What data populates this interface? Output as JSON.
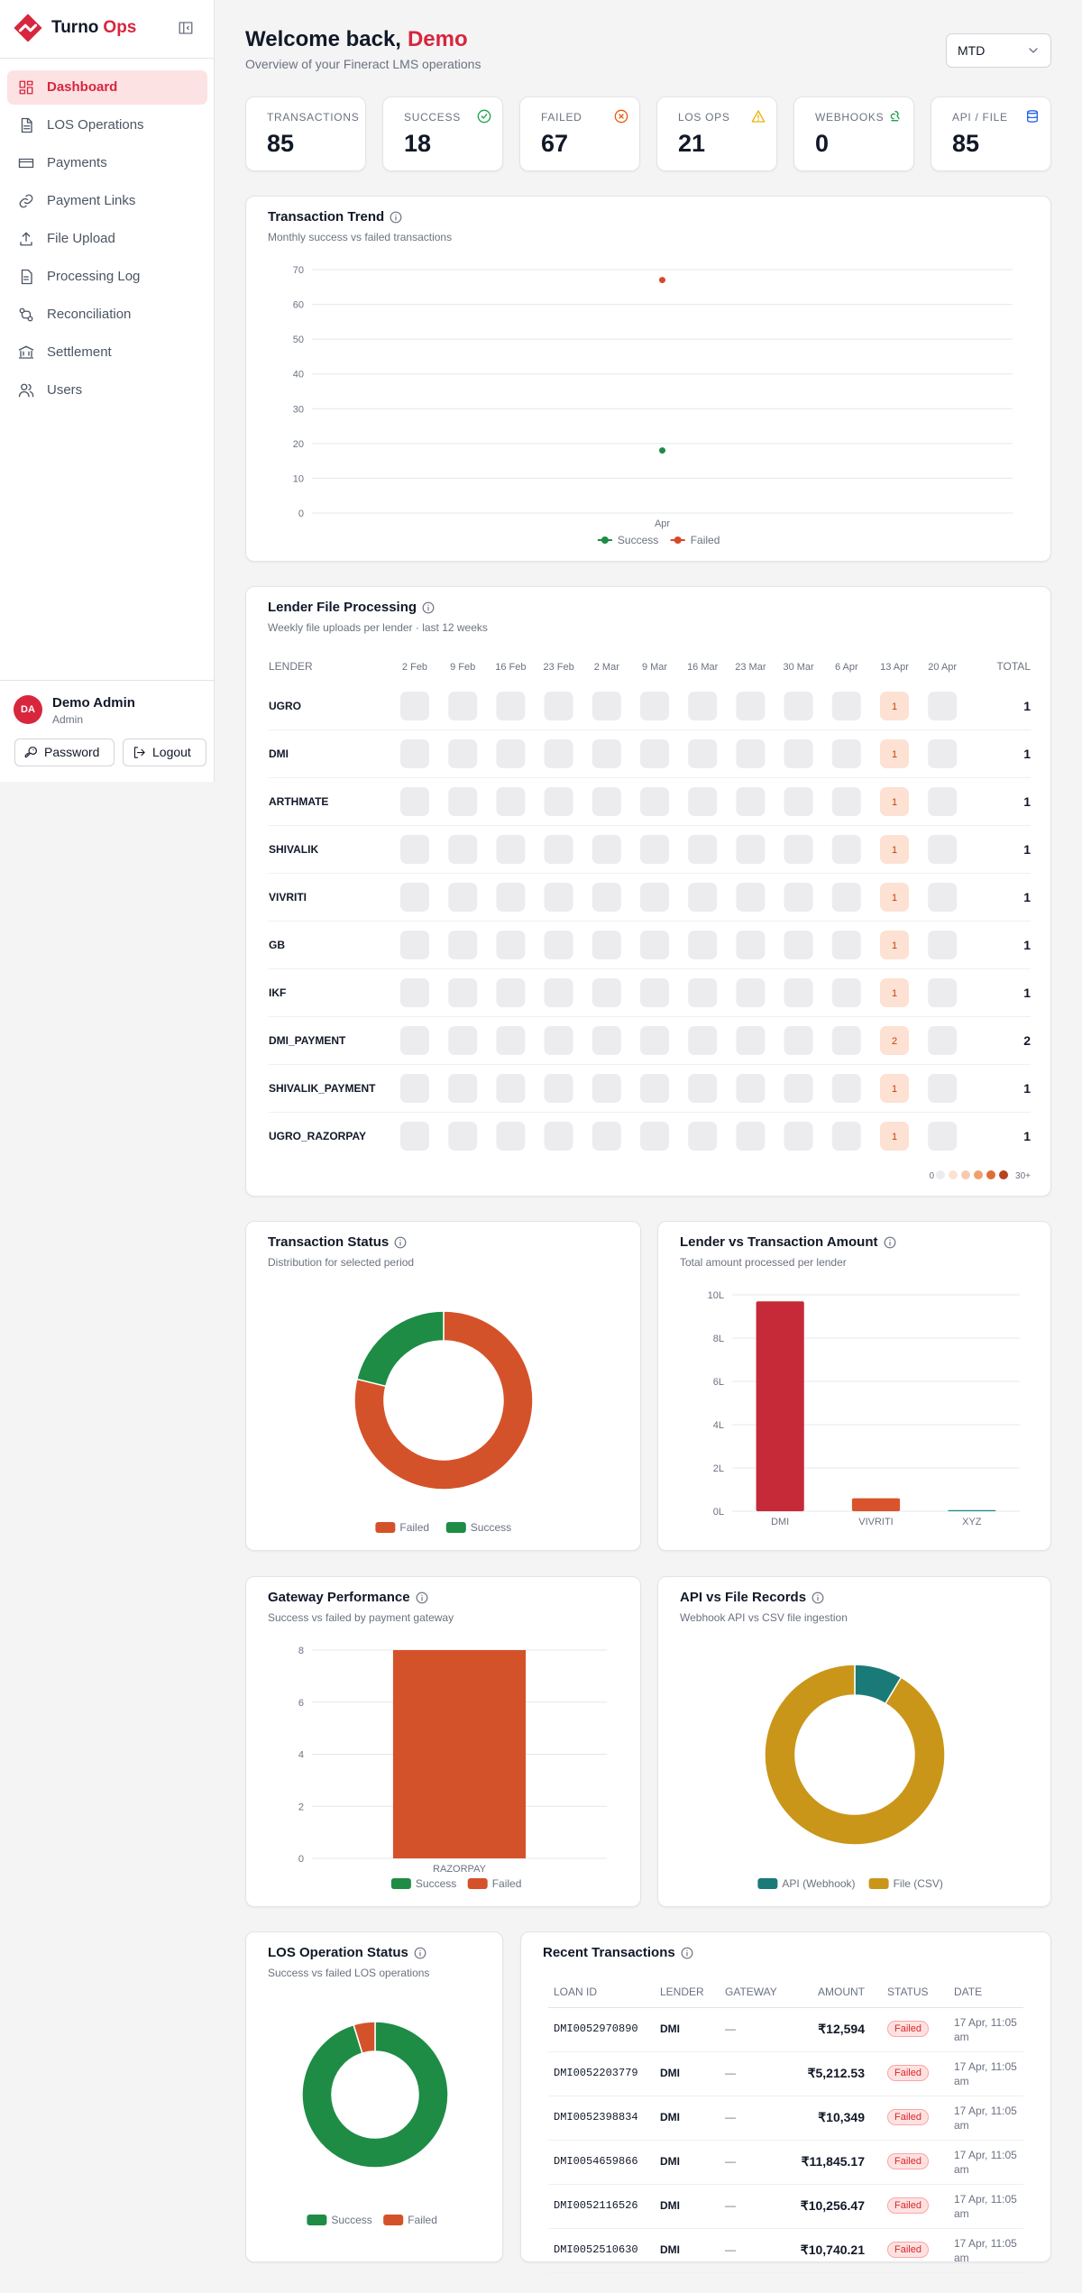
{
  "sidebar": {
    "brand": {
      "name": "Turno",
      "accent": "Ops"
    },
    "nav": [
      "Dashboard",
      "LOS Operations",
      "Payments",
      "Payment Links",
      "File Upload",
      "Processing Log",
      "Reconciliation",
      "Settlement",
      "Users"
    ],
    "user": {
      "initials": "DA",
      "name": "Demo Admin",
      "role": "Admin"
    },
    "actions": [
      "Password",
      "Logout"
    ]
  },
  "header": {
    "greeting": "Welcome back,",
    "name": "Demo",
    "subtitle": "Overview of your Fineract LMS operations",
    "period": "MTD"
  },
  "kpis": [
    {
      "label": "TRANSACTIONS",
      "value": 85
    },
    {
      "label": "SUCCESS",
      "value": 18
    },
    {
      "label": "FAILED",
      "value": 67
    },
    {
      "label": "LOS OPS",
      "value": 21
    },
    {
      "label": "WEBHOOKS",
      "value": 0
    },
    {
      "label": "API / FILE",
      "value": 85
    }
  ],
  "chart_data": [
    {
      "type": "line",
      "title": "Transaction Trend",
      "subtitle": "Monthly success vs failed transactions",
      "categories": [
        "Apr"
      ],
      "series": [
        {
          "name": "Success",
          "color": "#1e8c45",
          "values": [
            18
          ]
        },
        {
          "name": "Failed",
          "color": "#d9482b",
          "values": [
            67
          ]
        }
      ],
      "ylim": [
        0,
        70
      ],
      "yticks": [
        0,
        10,
        20,
        30,
        40,
        50,
        60,
        70
      ],
      "grid": true,
      "legend": "bottom"
    },
    {
      "type": "pie",
      "title": "Transaction Status",
      "subtitle": "Distribution for selected period",
      "categories": [
        "Failed",
        "Success"
      ],
      "values": [
        67,
        18
      ],
      "colors": [
        "#d4522a",
        "#1e8c45"
      ],
      "legend": "bottom"
    },
    {
      "type": "bar",
      "title": "Lender vs Transaction Amount",
      "subtitle": "Total amount processed per lender",
      "categories": [
        "DMI",
        "VIVRITI",
        "XYZ"
      ],
      "values": [
        970000,
        60000,
        5000
      ],
      "colors": [
        "#c62a39",
        "#d9542c",
        "#1a8a8a"
      ],
      "ylim": [
        0,
        1000000
      ],
      "yticks": [
        {
          "value": 0,
          "label": "0L"
        },
        {
          "value": 200000,
          "label": "2L"
        },
        {
          "value": 400000,
          "label": "4L"
        },
        {
          "value": 600000,
          "label": "6L"
        },
        {
          "value": 800000,
          "label": "8L"
        },
        {
          "value": 1000000,
          "label": "10L"
        }
      ],
      "grid": true
    },
    {
      "type": "stacked_bar",
      "title": "Gateway Performance",
      "subtitle": "Success vs failed by payment gateway",
      "categories": [
        "RAZORPAY"
      ],
      "series": [
        {
          "name": "Success",
          "color": "#1e8c45",
          "values": [
            0
          ]
        },
        {
          "name": "Failed",
          "color": "#d4522a",
          "values": [
            8
          ]
        }
      ],
      "ylim": [
        0,
        8
      ],
      "yticks": [
        0,
        2,
        4,
        6,
        8
      ],
      "grid": true,
      "legend": "bottom"
    },
    {
      "type": "pie",
      "title": "API vs File Records",
      "subtitle": "Webhook API vs CSV file ingestion",
      "categories": [
        "API (Webhook)",
        "File (CSV)"
      ],
      "values": [
        8,
        85
      ],
      "colors": [
        "#1a7a78",
        "#c9961a"
      ],
      "legend": "bottom"
    },
    {
      "type": "pie",
      "title": "LOS Operation Status",
      "subtitle": "Success vs failed LOS operations",
      "categories": [
        "Success",
        "Failed"
      ],
      "values": [
        20,
        1
      ],
      "colors": [
        "#1e8c45",
        "#d4522a"
      ],
      "legend": "bottom"
    }
  ],
  "lender_file_processing": {
    "title": "Lender File Processing",
    "subtitle": "Weekly file uploads per lender · last 12 weeks",
    "lender_header": "LENDER",
    "total_header": "TOTAL",
    "weeks": [
      "2 Feb",
      "9 Feb",
      "16 Feb",
      "23 Feb",
      "2 Mar",
      "9 Mar",
      "16 Mar",
      "23 Mar",
      "30 Mar",
      "6 Apr",
      "13 Apr",
      "20 Apr"
    ],
    "rows": [
      {
        "lender": "UGRO",
        "counts": [
          null,
          null,
          null,
          null,
          null,
          null,
          null,
          null,
          null,
          null,
          1,
          null
        ],
        "total": 1
      },
      {
        "lender": "DMI",
        "counts": [
          null,
          null,
          null,
          null,
          null,
          null,
          null,
          null,
          null,
          null,
          1,
          null
        ],
        "total": 1
      },
      {
        "lender": "ARTHMATE",
        "counts": [
          null,
          null,
          null,
          null,
          null,
          null,
          null,
          null,
          null,
          null,
          1,
          null
        ],
        "total": 1
      },
      {
        "lender": "SHIVALIK",
        "counts": [
          null,
          null,
          null,
          null,
          null,
          null,
          null,
          null,
          null,
          null,
          1,
          null
        ],
        "total": 1
      },
      {
        "lender": "VIVRITI",
        "counts": [
          null,
          null,
          null,
          null,
          null,
          null,
          null,
          null,
          null,
          null,
          1,
          null
        ],
        "total": 1
      },
      {
        "lender": "GB",
        "counts": [
          null,
          null,
          null,
          null,
          null,
          null,
          null,
          null,
          null,
          null,
          1,
          null
        ],
        "total": 1
      },
      {
        "lender": "IKF",
        "counts": [
          null,
          null,
          null,
          null,
          null,
          null,
          null,
          null,
          null,
          null,
          1,
          null
        ],
        "total": 1
      },
      {
        "lender": "DMI_PAYMENT",
        "counts": [
          null,
          null,
          null,
          null,
          null,
          null,
          null,
          null,
          null,
          null,
          2,
          null
        ],
        "total": 2
      },
      {
        "lender": "SHIVALIK_PAYMENT",
        "counts": [
          null,
          null,
          null,
          null,
          null,
          null,
          null,
          null,
          null,
          null,
          1,
          null
        ],
        "total": 1
      },
      {
        "lender": "UGRO_RAZORPAY",
        "counts": [
          null,
          null,
          null,
          null,
          null,
          null,
          null,
          null,
          null,
          null,
          1,
          null
        ],
        "total": 1
      }
    ],
    "legend": {
      "low": 0,
      "high": "30+"
    },
    "scale_colors": [
      "#ececef",
      "#fde1d3",
      "#f8c9b0",
      "#f0a06f",
      "#e06d37",
      "#b8431d"
    ]
  },
  "recent_transactions": {
    "title": "Recent Transactions",
    "columns": [
      "LOAN ID",
      "LENDER",
      "GATEWAY",
      "AMOUNT",
      "STATUS",
      "DATE"
    ],
    "rows": [
      [
        "DMI0052970890",
        "DMI",
        "—",
        "₹12,594",
        "Failed",
        "17 Apr, 11:05 am"
      ],
      [
        "DMI0052203779",
        "DMI",
        "—",
        "₹5,212.53",
        "Failed",
        "17 Apr, 11:05 am"
      ],
      [
        "DMI0052398834",
        "DMI",
        "—",
        "₹10,349",
        "Failed",
        "17 Apr, 11:05 am"
      ],
      [
        "DMI0054659866",
        "DMI",
        "—",
        "₹11,845.17",
        "Failed",
        "17 Apr, 11:05 am"
      ],
      [
        "DMI0052116526",
        "DMI",
        "—",
        "₹10,256.47",
        "Failed",
        "17 Apr, 11:05 am"
      ],
      [
        "DMI0052510630",
        "DMI",
        "—",
        "₹10,740.21",
        "Failed",
        "17 Apr, 11:05 am"
      ]
    ]
  }
}
